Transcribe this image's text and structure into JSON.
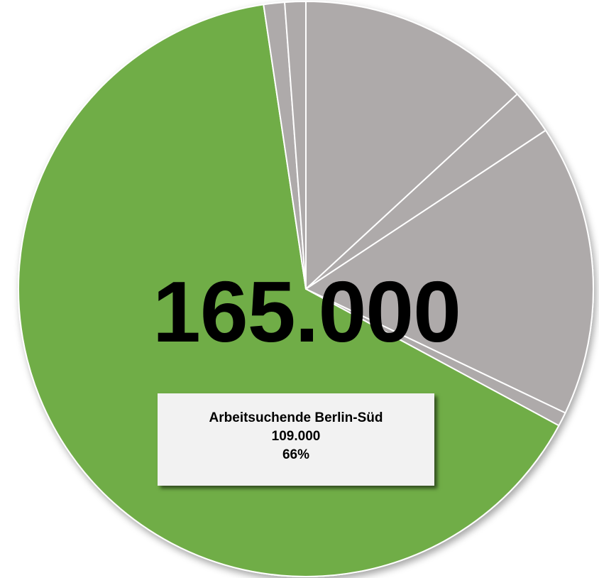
{
  "chart_data": {
    "type": "pie",
    "total_label": "165.000",
    "slices": [
      {
        "value": 13.4,
        "color": "#aeaaaa"
      },
      {
        "value": 2.6,
        "color": "#aeaaaa"
      },
      {
        "value": 16.7,
        "color": "#aeaaaa"
      },
      {
        "value": 0.8,
        "color": "#aeaaaa"
      },
      {
        "value": 66.0,
        "color": "#70ad47"
      },
      {
        "value": 1.2,
        "color": "#aeaaaa"
      },
      {
        "value": 1.2,
        "color": "#aeaaaa"
      }
    ],
    "callout": {
      "name": "Arbeitsuchende Berlin-Süd",
      "value": "109.000",
      "percent": "66%"
    }
  },
  "colors": {
    "highlight": "#70ad47",
    "other": "#aeaaaa",
    "separator": "#ffffff"
  }
}
